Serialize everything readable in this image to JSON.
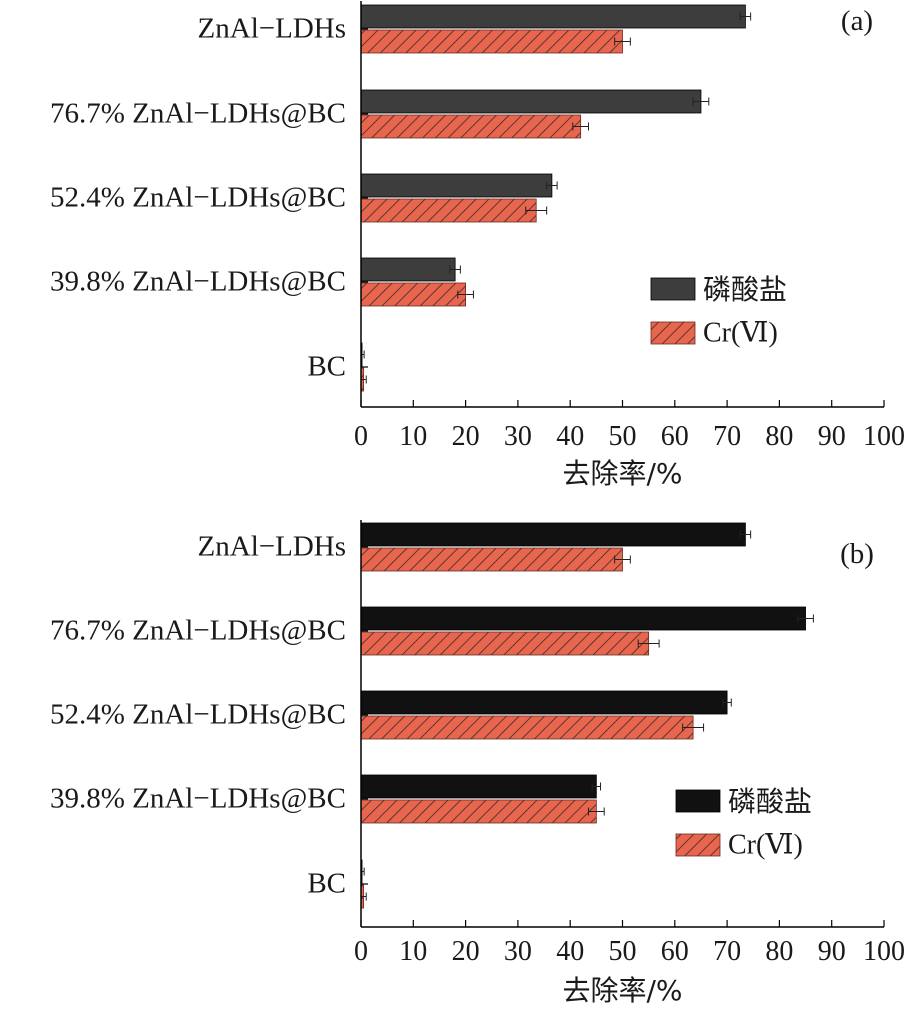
{
  "chart_data": [
    {
      "type": "bar",
      "orientation": "horizontal",
      "panel_label": "(a)",
      "categories": [
        "ZnAl−LDHs",
        "76.7% ZnAl−LDHs@BC",
        "52.4% ZnAl−LDHs@BC",
        "39.8% ZnAl−LDHs@BC",
        "BC"
      ],
      "series": [
        {
          "name": "磷酸盐",
          "values": [
            73.5,
            65.0,
            36.5,
            18.0,
            0.2
          ],
          "errors": [
            1.0,
            1.5,
            1.0,
            1.0,
            0.4
          ],
          "color": "#3d3d3d",
          "pattern": "solid"
        },
        {
          "name": "Cr(Ⅵ)",
          "values": [
            50.0,
            42.0,
            33.5,
            20.0,
            0.5
          ],
          "errors": [
            1.5,
            1.5,
            2.0,
            1.5,
            0.5
          ],
          "color": "#e8654e",
          "pattern": "hatch"
        }
      ],
      "xlabel": "去除率/%",
      "xlim": [
        0,
        100
      ],
      "xticks": [
        "0",
        "10",
        "20",
        "30",
        "40",
        "50",
        "60",
        "70",
        "80",
        "90",
        "100"
      ],
      "legend_position": "right"
    },
    {
      "type": "bar",
      "orientation": "horizontal",
      "panel_label": "(b)",
      "categories": [
        "ZnAl−LDHs",
        "76.7% ZnAl−LDHs@BC",
        "52.4% ZnAl−LDHs@BC",
        "39.8% ZnAl−LDHs@BC",
        "BC"
      ],
      "series": [
        {
          "name": "磷酸盐",
          "values": [
            73.5,
            85.0,
            70.0,
            45.0,
            0.2
          ],
          "errors": [
            1.0,
            1.5,
            0.8,
            0.8,
            0.4
          ],
          "color": "#111111",
          "pattern": "solid"
        },
        {
          "name": "Cr(Ⅵ)",
          "values": [
            50.0,
            55.0,
            63.5,
            45.0,
            0.5
          ],
          "errors": [
            1.5,
            2.0,
            2.0,
            1.5,
            0.5
          ],
          "color": "#e8654e",
          "pattern": "hatch"
        }
      ],
      "xlabel": "去除率/%",
      "xlim": [
        0,
        100
      ],
      "xticks": [
        "0",
        "10",
        "20",
        "30",
        "40",
        "50",
        "60",
        "70",
        "80",
        "90",
        "100"
      ],
      "legend_position": "right"
    }
  ]
}
